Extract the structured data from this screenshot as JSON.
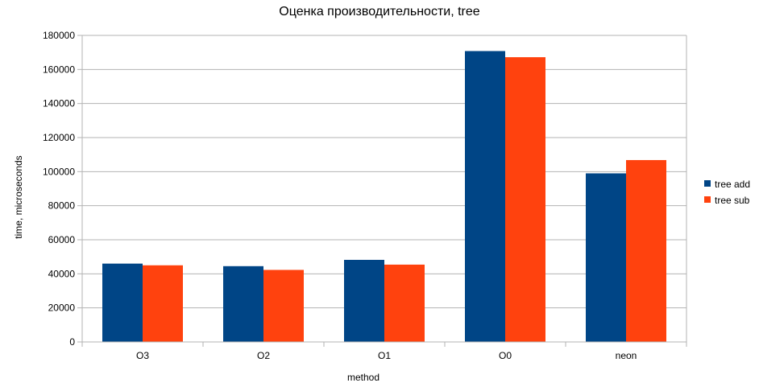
{
  "chart_data": {
    "type": "bar",
    "title": "Оценка производительности, tree",
    "xlabel": "method",
    "ylabel": "time, microseconds",
    "categories": [
      "O3",
      "O2",
      "O1",
      "O0",
      "neon"
    ],
    "series": [
      {
        "name": "tree add",
        "color": "#004586",
        "values": [
          46000,
          44500,
          48200,
          170800,
          99000
        ]
      },
      {
        "name": "tree sub",
        "color": "#ff420e",
        "values": [
          45000,
          42300,
          45400,
          167200,
          106800
        ]
      }
    ],
    "ylim": [
      0,
      180000
    ],
    "yticks": [
      0,
      20000,
      40000,
      60000,
      80000,
      100000,
      120000,
      140000,
      160000,
      180000
    ],
    "grid": true,
    "legend_position": "right"
  }
}
